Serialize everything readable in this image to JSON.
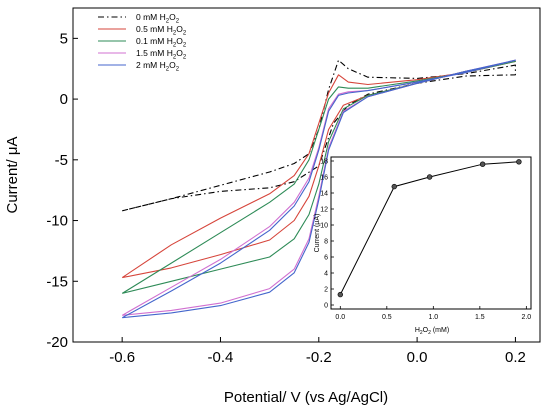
{
  "chart_data": [
    {
      "type": "line",
      "title": "",
      "xlabel": "Potential/ V (vs Ag/AgCl)",
      "ylabel": "Current/ μA",
      "xlim": [
        -0.7,
        0.25
      ],
      "ylim": [
        -20,
        7.5
      ],
      "xticks": [
        -0.6,
        -0.4,
        -0.2,
        0.0,
        0.2
      ],
      "xtick_labels": [
        "-0.6",
        "-0.4",
        "-0.2",
        "0.0",
        "0.2"
      ],
      "yticks": [
        -20,
        -15,
        -10,
        -5,
        0,
        5
      ],
      "ytick_labels": [
        "-20",
        "-15",
        "-10",
        "-5",
        "0",
        "5"
      ],
      "grid": false,
      "legend_position": "top-left",
      "series": [
        {
          "label": "0 mM H₂O₂",
          "label_main": "0 mM H",
          "label_sub": "2",
          "label_mid": "O",
          "label_sub2": "2",
          "color": "#000000",
          "dash": "dashdot",
          "x": [
            -0.6,
            -0.5,
            -0.4,
            -0.3,
            -0.25,
            -0.22,
            -0.2,
            -0.18,
            -0.16,
            -0.14,
            -0.1,
            0.0,
            0.1,
            0.2,
            0.2,
            0.1,
            0.0,
            -0.1,
            -0.14,
            -0.17,
            -0.2,
            -0.25,
            -0.3,
            -0.4,
            -0.5,
            -0.6
          ],
          "y": [
            -9.2,
            -8.2,
            -7.1,
            -6.0,
            -5.3,
            -4.5,
            -2.5,
            0.8,
            3.2,
            2.5,
            1.8,
            1.7,
            2.1,
            2.8,
            2.0,
            1.9,
            1.3,
            0.4,
            -0.5,
            -2.0,
            -5.5,
            -6.8,
            -7.3,
            -7.6,
            -8.2,
            -9.2
          ]
        },
        {
          "label": "0.5 mM H₂O₂",
          "label_main": "0.5 mM H",
          "label_sub": "2",
          "label_mid": "O",
          "label_sub2": "2",
          "color": "#d6453b",
          "dash": "solid",
          "x": [
            -0.6,
            -0.5,
            -0.4,
            -0.3,
            -0.25,
            -0.22,
            -0.2,
            -0.18,
            -0.16,
            -0.14,
            -0.1,
            0.0,
            0.1,
            0.2,
            0.2,
            0.1,
            0.0,
            -0.1,
            -0.15,
            -0.18,
            -0.2,
            -0.22,
            -0.25,
            -0.3,
            -0.4,
            -0.5,
            -0.6
          ],
          "y": [
            -14.7,
            -12.0,
            -9.8,
            -7.8,
            -6.3,
            -4.5,
            -2.0,
            0.5,
            2.0,
            1.4,
            1.2,
            1.6,
            2.2,
            3.1,
            3.1,
            2.3,
            1.3,
            0.3,
            -0.5,
            -2.5,
            -5.5,
            -8.0,
            -10.0,
            -11.6,
            -12.8,
            -13.9,
            -14.7
          ]
        },
        {
          "label": "0.1 mM H₂O₂",
          "label_main": "0.1 mM H",
          "label_sub": "2",
          "label_mid": "O",
          "label_sub2": "2",
          "color": "#2e8b57",
          "dash": "solid",
          "x": [
            -0.6,
            -0.5,
            -0.4,
            -0.3,
            -0.25,
            -0.22,
            -0.2,
            -0.18,
            -0.16,
            -0.14,
            -0.1,
            0.0,
            0.1,
            0.2,
            0.2,
            0.1,
            0.0,
            -0.1,
            -0.15,
            -0.18,
            -0.2,
            -0.22,
            -0.25,
            -0.3,
            -0.4,
            -0.5,
            -0.6
          ],
          "y": [
            -16.0,
            -13.5,
            -11.0,
            -8.5,
            -7.0,
            -5.0,
            -2.5,
            0.0,
            1.0,
            0.9,
            0.9,
            1.5,
            2.2,
            3.1,
            3.1,
            2.3,
            1.3,
            0.3,
            -0.8,
            -3.5,
            -7.0,
            -9.5,
            -11.5,
            -13.0,
            -14.0,
            -15.0,
            -16.0
          ]
        },
        {
          "label": "1.5 mM H₂O₂",
          "label_main": "1.5 mM H",
          "label_sub": "2",
          "label_mid": "O",
          "label_sub2": "2",
          "color": "#d070d0",
          "dash": "solid",
          "x": [
            -0.6,
            -0.5,
            -0.4,
            -0.3,
            -0.25,
            -0.22,
            -0.2,
            -0.18,
            -0.16,
            -0.14,
            -0.1,
            0.0,
            0.1,
            0.2,
            0.2,
            0.1,
            0.0,
            -0.1,
            -0.15,
            -0.18,
            -0.2,
            -0.22,
            -0.25,
            -0.3,
            -0.4,
            -0.5,
            -0.6
          ],
          "y": [
            -17.8,
            -15.5,
            -13.2,
            -10.5,
            -8.5,
            -6.5,
            -4.0,
            -0.8,
            0.4,
            0.6,
            0.7,
            1.4,
            2.2,
            3.2,
            3.2,
            2.3,
            1.3,
            0.2,
            -1.0,
            -4.0,
            -8.0,
            -11.5,
            -14.0,
            -15.6,
            -16.8,
            -17.4,
            -17.8
          ]
        },
        {
          "label": "2 mM H₂O₂",
          "label_main": "2 mM H",
          "label_sub": "2",
          "label_mid": "O",
          "label_sub2": "2",
          "color": "#4466cc",
          "dash": "solid",
          "x": [
            -0.6,
            -0.5,
            -0.4,
            -0.3,
            -0.25,
            -0.22,
            -0.2,
            -0.18,
            -0.16,
            -0.14,
            -0.1,
            0.0,
            0.1,
            0.2,
            0.2,
            0.1,
            0.0,
            -0.1,
            -0.15,
            -0.18,
            -0.2,
            -0.22,
            -0.25,
            -0.3,
            -0.4,
            -0.5,
            -0.6
          ],
          "y": [
            -18.0,
            -15.8,
            -13.5,
            -10.8,
            -8.8,
            -6.8,
            -4.2,
            -1.0,
            0.3,
            0.5,
            0.7,
            1.4,
            2.2,
            3.2,
            3.2,
            2.3,
            1.3,
            0.2,
            -1.1,
            -4.2,
            -8.3,
            -11.8,
            -14.3,
            -15.9,
            -17.0,
            -17.6,
            -18.0
          ]
        }
      ]
    },
    {
      "type": "line",
      "title": "",
      "xlabel_main": "H",
      "xlabel_sub": "2",
      "xlabel_mid": "O",
      "xlabel_sub2": "2",
      "xlabel_tail": " (mM)",
      "xlabel": "H₂O₂ (mM)",
      "ylabel": "Current (μA)",
      "xlim": [
        -0.1,
        2.05
      ],
      "ylim": [
        -0.5,
        18.5
      ],
      "xticks": [
        0.0,
        0.5,
        1.0,
        1.5,
        2.0
      ],
      "xtick_labels": [
        "0.0",
        "0.5",
        "1.0",
        "1.5",
        "2.0"
      ],
      "yticks": [
        0,
        2,
        4,
        6,
        8,
        10,
        12,
        14,
        16,
        18
      ],
      "ytick_labels": [
        "0",
        "2",
        "4",
        "6",
        "8",
        "10",
        "12",
        "14",
        "16",
        "18"
      ],
      "grid": false,
      "series": [
        {
          "color": "#000000",
          "marker": "circle",
          "x": [
            0.0,
            0.58,
            0.96,
            1.53,
            1.92
          ],
          "y": [
            1.3,
            14.8,
            16.0,
            17.6,
            17.9
          ]
        }
      ]
    }
  ]
}
